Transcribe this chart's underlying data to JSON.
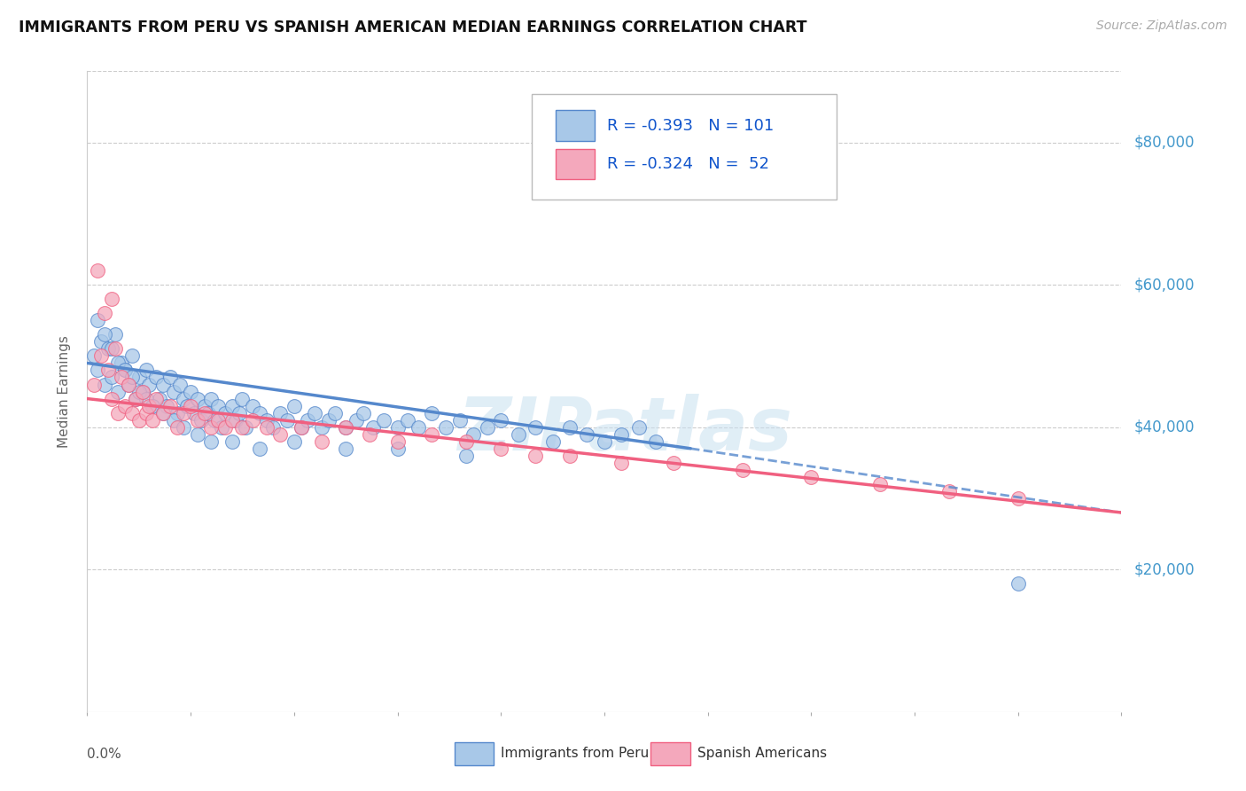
{
  "title": "IMMIGRANTS FROM PERU VS SPANISH AMERICAN MEDIAN EARNINGS CORRELATION CHART",
  "source": "Source: ZipAtlas.com",
  "ylabel": "Median Earnings",
  "yticks": [
    20000,
    40000,
    60000,
    80000
  ],
  "ytick_labels": [
    "$20,000",
    "$40,000",
    "$60,000",
    "$80,000"
  ],
  "xlim": [
    0.0,
    0.3
  ],
  "ylim": [
    0,
    90000
  ],
  "legend_r1": "R = -0.393",
  "legend_n1": "N = 101",
  "legend_r2": "R = -0.324",
  "legend_n2": "N =  52",
  "color_peru": "#a8c8e8",
  "color_spanish": "#f4a8bc",
  "color_peru_line": "#5588cc",
  "color_spanish_line": "#f06080",
  "watermark_text": "ZIPatlas",
  "legend_label1": "Immigrants from Peru",
  "legend_label2": "Spanish Americans",
  "peru_x": [
    0.002,
    0.003,
    0.004,
    0.005,
    0.006,
    0.007,
    0.008,
    0.009,
    0.01,
    0.011,
    0.012,
    0.013,
    0.014,
    0.015,
    0.016,
    0.017,
    0.018,
    0.019,
    0.02,
    0.021,
    0.022,
    0.023,
    0.024,
    0.025,
    0.026,
    0.027,
    0.028,
    0.029,
    0.03,
    0.031,
    0.032,
    0.033,
    0.034,
    0.035,
    0.036,
    0.037,
    0.038,
    0.039,
    0.04,
    0.042,
    0.043,
    0.044,
    0.045,
    0.046,
    0.048,
    0.05,
    0.052,
    0.054,
    0.056,
    0.058,
    0.06,
    0.062,
    0.064,
    0.066,
    0.068,
    0.07,
    0.072,
    0.075,
    0.078,
    0.08,
    0.083,
    0.086,
    0.09,
    0.093,
    0.096,
    0.1,
    0.104,
    0.108,
    0.112,
    0.116,
    0.12,
    0.125,
    0.13,
    0.135,
    0.14,
    0.145,
    0.15,
    0.155,
    0.16,
    0.165,
    0.003,
    0.005,
    0.007,
    0.009,
    0.011,
    0.013,
    0.015,
    0.017,
    0.019,
    0.022,
    0.025,
    0.028,
    0.032,
    0.036,
    0.042,
    0.05,
    0.06,
    0.075,
    0.09,
    0.11,
    0.27
  ],
  "peru_y": [
    50000,
    48000,
    52000,
    46000,
    51000,
    47000,
    53000,
    45000,
    49000,
    48000,
    46000,
    50000,
    44000,
    47000,
    45000,
    48000,
    46000,
    43000,
    47000,
    44000,
    46000,
    43000,
    47000,
    45000,
    42000,
    46000,
    44000,
    43000,
    45000,
    42000,
    44000,
    41000,
    43000,
    42000,
    44000,
    41000,
    43000,
    40000,
    42000,
    43000,
    41000,
    42000,
    44000,
    40000,
    43000,
    42000,
    41000,
    40000,
    42000,
    41000,
    43000,
    40000,
    41000,
    42000,
    40000,
    41000,
    42000,
    40000,
    41000,
    42000,
    40000,
    41000,
    40000,
    41000,
    40000,
    42000,
    40000,
    41000,
    39000,
    40000,
    41000,
    39000,
    40000,
    38000,
    40000,
    39000,
    38000,
    39000,
    40000,
    38000,
    55000,
    53000,
    51000,
    49000,
    48000,
    47000,
    45000,
    44000,
    43000,
    42000,
    41000,
    40000,
    39000,
    38000,
    38000,
    37000,
    38000,
    37000,
    37000,
    36000,
    18000
  ],
  "spanish_x": [
    0.002,
    0.004,
    0.005,
    0.006,
    0.007,
    0.008,
    0.009,
    0.01,
    0.011,
    0.012,
    0.013,
    0.014,
    0.015,
    0.016,
    0.017,
    0.018,
    0.019,
    0.02,
    0.022,
    0.024,
    0.026,
    0.028,
    0.03,
    0.032,
    0.034,
    0.036,
    0.038,
    0.04,
    0.042,
    0.045,
    0.048,
    0.052,
    0.056,
    0.062,
    0.068,
    0.075,
    0.082,
    0.09,
    0.1,
    0.11,
    0.12,
    0.13,
    0.14,
    0.155,
    0.17,
    0.19,
    0.21,
    0.23,
    0.25,
    0.27,
    0.003,
    0.007
  ],
  "spanish_y": [
    46000,
    50000,
    56000,
    48000,
    44000,
    51000,
    42000,
    47000,
    43000,
    46000,
    42000,
    44000,
    41000,
    45000,
    42000,
    43000,
    41000,
    44000,
    42000,
    43000,
    40000,
    42000,
    43000,
    41000,
    42000,
    40000,
    41000,
    40000,
    41000,
    40000,
    41000,
    40000,
    39000,
    40000,
    38000,
    40000,
    39000,
    38000,
    39000,
    38000,
    37000,
    36000,
    36000,
    35000,
    35000,
    34000,
    33000,
    32000,
    31000,
    30000,
    62000,
    58000
  ],
  "trend_peru_x0": 0.0,
  "trend_peru_y0": 49000,
  "trend_peru_x1": 0.175,
  "trend_peru_y1": 37000,
  "trend_peru_dash_x0": 0.175,
  "trend_peru_dash_y0": 37000,
  "trend_peru_dash_x1": 0.3,
  "trend_peru_dash_y1": 28000,
  "trend_spanish_x0": 0.0,
  "trend_spanish_y0": 44000,
  "trend_spanish_x1": 0.3,
  "trend_spanish_y1": 28000
}
